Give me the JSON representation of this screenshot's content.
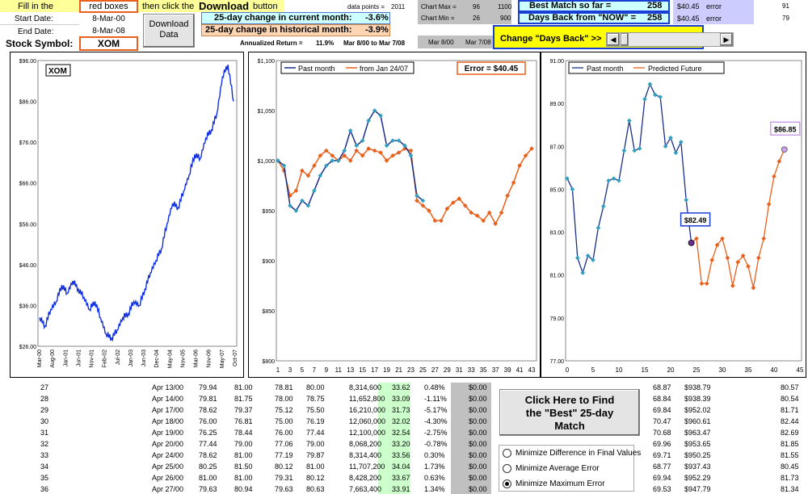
{
  "top": {
    "fill_in": "Fill in the",
    "red_boxes": "red boxes",
    "then_click": "then click the",
    "download_word": "Download",
    "button_word": "button",
    "start_label": "Start Date:",
    "start_value": "8-Mar-00",
    "end_label": "End Date:",
    "end_value": "8-Mar-08",
    "symbol_label": "Stock Symbol:",
    "symbol_value": "XOM",
    "download_label": "Download Data",
    "data_points_label": "data points =",
    "data_points_value": "2011",
    "change_current_label": "25-day change in current month:",
    "change_current_value": "-3.6%",
    "change_hist_label": "25-day change in historical month:",
    "change_hist_value": "-3.9%",
    "annual_label": "Annualized Return =",
    "annual_value": "11.9%",
    "annual_range": "Mar 8/00 to Mar 7/08",
    "chart_max_label": "Chart Max =",
    "chart_max_a": "96",
    "chart_max_b": "1100",
    "chart_min_label": "Chart Min =",
    "chart_min_a": "26",
    "chart_min_b": "900",
    "date_a": "Mar 8/00",
    "date_b": "Mar 7/08",
    "best_label": "Best Match so far =",
    "best_value": "258",
    "best_err_val": "$40.45",
    "best_err_word": "error",
    "best_err_num": "91",
    "days_label": "Days Back from \"NOW\" =",
    "days_value": "258",
    "days_err_val": "$40.45",
    "days_err_word": "error",
    "days_err_num": "79",
    "change_days_label": "Change \"Days Back\" >>"
  },
  "chart1": {
    "legend": "XOM",
    "yticks": [
      "$96.00",
      "$86.00",
      "$76.00",
      "$66.00",
      "$56.00",
      "$46.00",
      "$36.00",
      "$26.00"
    ],
    "xticks": [
      "Mar-00",
      "Aug-00",
      "Jan-01",
      "Jun-01",
      "Nov-01",
      "Feb-02",
      "Jul-02",
      "Jan-03",
      "Jun-03",
      "Dec-04",
      "May-04",
      "Nov-05",
      "Mar-06",
      "Nov-06",
      "May-07",
      "Oct-07"
    ]
  },
  "chart2": {
    "legend_a": "Past month",
    "legend_b": "from Jan 24/07",
    "error_label": "Error = $40.45",
    "yticks": [
      "$1,100",
      "$1,050",
      "$1,000",
      "$950",
      "$900",
      "$850",
      "$800"
    ],
    "xticks": [
      "1",
      "3",
      "5",
      "7",
      "9",
      "11",
      "13",
      "15",
      "17",
      "19",
      "21",
      "23",
      "25",
      "27",
      "29",
      "31",
      "33",
      "35",
      "37",
      "39",
      "41",
      "43"
    ]
  },
  "chart3": {
    "legend_a": "Past month",
    "legend_b": "Predicted Future",
    "label_now": "$82.49",
    "label_future": "$86.85",
    "yticks": [
      "91.00",
      "89.00",
      "87.00",
      "85.00",
      "83.00",
      "81.00",
      "79.00",
      "77.00"
    ],
    "xticks": [
      "0",
      "5",
      "10",
      "15",
      "20",
      "25",
      "30",
      "35",
      "40",
      "45"
    ]
  },
  "chart_data": [
    {
      "type": "line",
      "title": "",
      "series": [
        {
          "name": "XOM",
          "values": [
            33,
            31,
            35,
            37,
            41,
            39,
            42,
            40,
            38,
            35,
            37,
            33,
            29,
            28,
            30,
            33,
            34,
            37,
            36,
            40,
            44,
            47,
            50,
            56,
            61,
            60,
            64,
            68,
            73,
            72,
            77,
            79,
            83,
            92,
            95,
            86
          ]
        }
      ],
      "ylim": [
        26,
        96
      ]
    },
    {
      "type": "line",
      "series": [
        {
          "name": "Past month",
          "x": [
            1,
            2,
            3,
            4,
            5,
            6,
            7,
            8,
            9,
            10,
            11,
            12,
            13,
            14,
            15,
            16,
            17,
            18,
            19,
            20,
            21,
            22,
            23,
            24,
            25
          ],
          "values": [
            1000,
            995,
            955,
            950,
            960,
            955,
            970,
            985,
            995,
            1000,
            1000,
            1010,
            1030,
            1015,
            1020,
            1040,
            1050,
            1045,
            1015,
            1020,
            1020,
            1015,
            1005,
            965,
            960
          ]
        },
        {
          "name": "from Jan 24/07",
          "x": [
            1,
            2,
            3,
            4,
            5,
            6,
            7,
            8,
            9,
            10,
            11,
            12,
            13,
            14,
            15,
            16,
            17,
            18,
            19,
            20,
            21,
            22,
            23,
            24,
            25,
            26,
            27,
            28,
            29,
            30,
            31,
            32,
            33,
            34,
            35,
            36,
            37,
            38,
            39,
            40,
            41,
            42,
            43
          ],
          "values": [
            1000,
            990,
            965,
            970,
            990,
            985,
            995,
            1005,
            1010,
            1005,
            1000,
            1005,
            1000,
            1010,
            1005,
            1012,
            1010,
            1008,
            1000,
            1005,
            1008,
            1012,
            1010,
            960,
            955,
            950,
            940,
            940,
            952,
            958,
            962,
            955,
            948,
            945,
            940,
            948,
            937,
            948,
            965,
            978,
            995,
            1005,
            1012
          ]
        }
      ],
      "ylim": [
        800,
        1100
      ]
    },
    {
      "type": "line",
      "series": [
        {
          "name": "Past month",
          "x": [
            0,
            1,
            2,
            3,
            4,
            5,
            6,
            7,
            8,
            9,
            10,
            11,
            12,
            13,
            14,
            15,
            16,
            17,
            18,
            19,
            20,
            21,
            22,
            23,
            24
          ],
          "values": [
            85.5,
            85.0,
            81.8,
            81.1,
            81.9,
            81.7,
            83.2,
            84.2,
            85.4,
            85.5,
            85.4,
            86.8,
            88.2,
            86.8,
            86.9,
            89.2,
            89.9,
            89.4,
            89.3,
            87.0,
            87.4,
            86.7,
            87.2,
            84.5,
            82.5
          ]
        },
        {
          "name": "Predicted Future",
          "x": [
            24,
            25,
            26,
            27,
            28,
            29,
            30,
            31,
            32,
            33,
            34,
            35,
            36,
            37,
            38,
            39,
            40,
            41,
            42
          ],
          "values": [
            82.5,
            82.7,
            80.6,
            80.6,
            81.7,
            82.4,
            82.7,
            81.8,
            80.5,
            81.6,
            81.9,
            81.4,
            80.4,
            81.8,
            82.7,
            84.3,
            85.6,
            86.3,
            86.85
          ]
        }
      ],
      "ylim": [
        77,
        91
      ]
    }
  ],
  "table": {
    "rows": [
      [
        "27",
        "Apr 13/00",
        "79.94",
        "81.00",
        "78.81",
        "80.00",
        "8,314,600",
        "33.62",
        "0.48%",
        "$0.00",
        "68.87",
        "$938.79",
        "80.57"
      ],
      [
        "28",
        "Apr 14/00",
        "79.81",
        "81.75",
        "78.00",
        "78.75",
        "11,652,800",
        "33.09",
        "-1.11%",
        "$0.00",
        "68.84",
        "$938.39",
        "80.54"
      ],
      [
        "29",
        "Apr 17/00",
        "78.62",
        "79.37",
        "75.12",
        "75.50",
        "16,210,000",
        "31.73",
        "-5.17%",
        "$0.00",
        "69.84",
        "$952.02",
        "81.71"
      ],
      [
        "30",
        "Apr 18/00",
        "76.00",
        "76.81",
        "75.00",
        "76.19",
        "12,060,000",
        "32.02",
        "-4.30%",
        "$0.00",
        "70.47",
        "$960.61",
        "82.44"
      ],
      [
        "31",
        "Apr 19/00",
        "76.25",
        "78.44",
        "76.00",
        "77.44",
        "12,100,000",
        "32.54",
        "-2.75%",
        "$0.00",
        "70.68",
        "$963.47",
        "82.69"
      ],
      [
        "32",
        "Apr 20/00",
        "77.44",
        "79.00",
        "77.06",
        "79.00",
        "8,068,200",
        "33.20",
        "-0.78%",
        "$0.00",
        "69.96",
        "$953.65",
        "81.85"
      ],
      [
        "33",
        "Apr 24/00",
        "78.62",
        "81.00",
        "77.19",
        "79.87",
        "8,314,400",
        "33.56",
        "0.30%",
        "$0.00",
        "69.71",
        "$950.25",
        "81.55"
      ],
      [
        "34",
        "Apr 25/00",
        "80.25",
        "81.50",
        "80.12",
        "81.00",
        "11,707,200",
        "34.04",
        "1.73%",
        "$0.00",
        "68.77",
        "$937.43",
        "80.45"
      ],
      [
        "35",
        "Apr 26/00",
        "81.00",
        "81.00",
        "79.31",
        "80.12",
        "8,428,200",
        "33.67",
        "0.63%",
        "$0.00",
        "69.94",
        "$952.29",
        "81.73"
      ],
      [
        "36",
        "Apr 27/00",
        "79.63",
        "80.94",
        "79.63",
        "80.63",
        "7,663,400",
        "33.91",
        "1.34%",
        "$0.00",
        "69.53",
        "$947.79",
        "81.34"
      ]
    ],
    "big_button": "Click Here to Find the \"Best\" 25-day Match",
    "radio1": "Minimize Difference in Final Values",
    "radio2": "Minimize Average Error",
    "radio3": "Minimize Maximum Error"
  }
}
